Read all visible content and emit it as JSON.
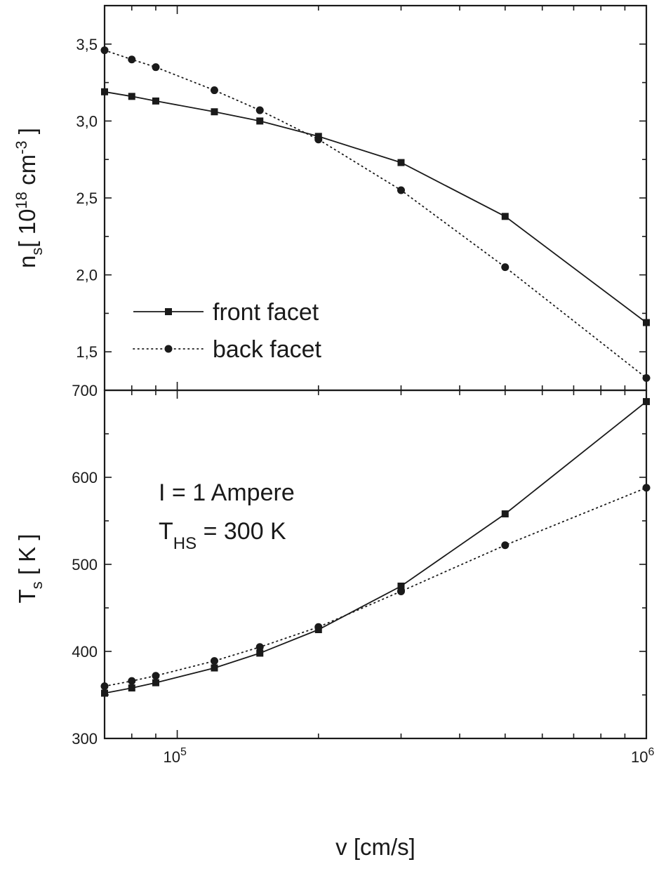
{
  "chart_data": [
    {
      "type": "line",
      "panel": "top",
      "title": "",
      "xlabel": "",
      "ylabel": "n",
      "ylabel_sub": "s",
      "ylabel_unit_open": "[ 10",
      "ylabel_unit_exp": "18",
      "ylabel_unit_mid": " cm",
      "ylabel_unit_exp2": "-3",
      "ylabel_unit_close": " ]",
      "x_scale": "log",
      "xlim": [
        70000,
        1000000
      ],
      "ylim": [
        1.25,
        3.75
      ],
      "yticks": [
        1.5,
        2.0,
        2.5,
        3.0,
        3.5
      ],
      "ytick_labels": [
        "1,5",
        "2,0",
        "2,5",
        "3,0",
        "3,5"
      ],
      "x": [
        70000,
        80000,
        90000,
        120000,
        150000,
        200000,
        300000,
        500000,
        1000000
      ],
      "series": [
        {
          "name": "front facet",
          "style": "solid",
          "marker": "square",
          "values": [
            3.19,
            3.16,
            3.13,
            3.06,
            3.0,
            2.9,
            2.73,
            2.38,
            1.69
          ]
        },
        {
          "name": "back facet",
          "style": "dotted",
          "marker": "circle",
          "values": [
            3.46,
            3.4,
            3.35,
            3.2,
            3.07,
            2.88,
            2.55,
            2.05,
            1.33
          ]
        }
      ],
      "legend": {
        "placement": "lower-left",
        "entries": [
          "front facet",
          "back facet"
        ]
      }
    },
    {
      "type": "line",
      "panel": "bottom",
      "title": "",
      "xlabel": "v [cm/s]",
      "ylabel": "T",
      "ylabel_sub": "s",
      "ylabel_unit": " [ K ]",
      "x_scale": "log",
      "xlim": [
        70000,
        1000000
      ],
      "ylim": [
        300,
        700
      ],
      "yticks": [
        300,
        400,
        500,
        600,
        700
      ],
      "ytick_labels": [
        "300",
        "400",
        "500",
        "600",
        "700"
      ],
      "xticks_labeled": [
        {
          "value": 100000,
          "base": "10",
          "exp": "5"
        },
        {
          "value": 1000000,
          "base": "10",
          "exp": "6"
        }
      ],
      "x": [
        70000,
        80000,
        90000,
        120000,
        150000,
        200000,
        300000,
        500000,
        1000000
      ],
      "series": [
        {
          "name": "front facet",
          "style": "solid",
          "marker": "square",
          "values": [
            352,
            358,
            364,
            381,
            398,
            425,
            475,
            558,
            687
          ]
        },
        {
          "name": "back facet",
          "style": "dotted",
          "marker": "circle",
          "values": [
            360,
            366,
            372,
            389,
            405,
            428,
            469,
            522,
            588
          ]
        }
      ],
      "annotations": {
        "line1": "I = 1 Ampere",
        "line2_main": "T",
        "line2_sub": "HS",
        "line2_rest": " = 300 K"
      }
    }
  ]
}
